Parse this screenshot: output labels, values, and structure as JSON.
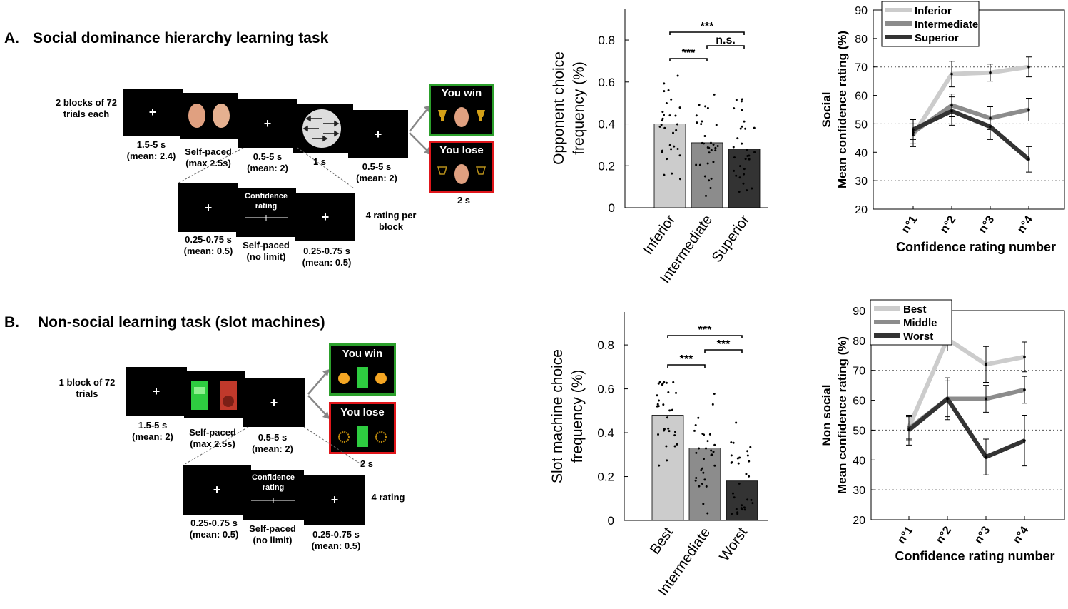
{
  "panelA": {
    "letter": "A.",
    "title": "Social dominance hierarchy learning task",
    "blocks_label": [
      "2 blocks of 72",
      "trials each"
    ],
    "screens": [
      {
        "label": [
          "1.5-5 s",
          "(mean: 2.4)"
        ]
      },
      {
        "label": [
          "Self-paced",
          "(max 2.5s)"
        ]
      },
      {
        "label": [
          "0.5-5 s",
          "(mean: 2)"
        ]
      },
      {
        "label": [
          "1 s"
        ]
      },
      {
        "label": [
          "0.5-5 s",
          "(mean: 2)"
        ]
      }
    ],
    "win_text": "You win",
    "lose_text": "You lose",
    "feedback_time": "2 s",
    "rating_screens": [
      {
        "label": [
          "0.25-0.75 s",
          "(mean: 0.5)"
        ]
      },
      {
        "label": [
          "Self-paced",
          "(no limit)"
        ],
        "text": [
          "Confidence",
          "rating"
        ]
      },
      {
        "label": [
          "0.25-0.75 s",
          "(mean: 0.5)"
        ]
      }
    ],
    "rating_note": [
      "4 rating per",
      "block"
    ]
  },
  "panelB": {
    "letter": "B.",
    "title": "Non-social learning task (slot machines)",
    "blocks_label": [
      "1 block of 72",
      "trials"
    ],
    "screens": [
      {
        "label": [
          "1.5-5 s",
          "(mean: 2)"
        ]
      },
      {
        "label": [
          "Self-paced",
          "(max 2.5s)"
        ]
      },
      {
        "label": [
          "0.5-5 s",
          "(mean: 2)"
        ]
      }
    ],
    "win_text": "You win",
    "lose_text": "You lose",
    "feedback_time": "2 s",
    "rating_screens": [
      {
        "label": [
          "0.25-0.75 s",
          "(mean: 0.5)"
        ]
      },
      {
        "label": [
          "Self-paced",
          "(no limit)"
        ],
        "text": [
          "Confidence",
          "rating"
        ]
      },
      {
        "label": [
          "0.25-0.75 s",
          "(mean: 0.5)"
        ]
      }
    ],
    "rating_note": [
      "4 rating"
    ]
  },
  "colors": {
    "light": "#cccccc",
    "mid": "#8c8c8c",
    "dark": "#333333",
    "win": "#2ca02c",
    "lose": "#e0161b"
  },
  "chart_data": [
    {
      "type": "bar",
      "ylabel": [
        "Opponent choice",
        "frequency (%)"
      ],
      "categories": [
        "Inferior",
        "Intermediate",
        "Superior"
      ],
      "values": [
        0.4,
        0.31,
        0.28
      ],
      "ylim": [
        0,
        0.95
      ],
      "yticks": [
        "0",
        "0.2",
        "0.4",
        "0.6",
        "0.8"
      ],
      "yticks_values": [
        0,
        0.2,
        0.4,
        0.6,
        0.8
      ],
      "significance": [
        {
          "pair": [
            0,
            2
          ],
          "text": "***"
        },
        {
          "pair": [
            1,
            2
          ],
          "text": "n.s."
        },
        {
          "pair": [
            0,
            1
          ],
          "text": "***"
        }
      ]
    },
    {
      "type": "line",
      "ylabel": [
        "Social",
        "Mean confidence rating (%)"
      ],
      "xlabel": "Confidence rating number",
      "categories": [
        "n°1",
        "n°2",
        "n°3",
        "n°4"
      ],
      "ylim": [
        20,
        90
      ],
      "yticks": [
        20,
        30,
        40,
        50,
        60,
        70,
        80,
        90
      ],
      "dotted_grid": [
        30,
        50,
        70
      ],
      "legend_position": "top-left",
      "series": [
        {
          "name": "Inferior",
          "values": [
            46,
            67.5,
            68,
            70
          ],
          "errors": [
            4,
            4.5,
            3,
            3.5
          ]
        },
        {
          "name": "Intermediate",
          "values": [
            47,
            56.5,
            52,
            55
          ],
          "errors": [
            4,
            4,
            4,
            4
          ]
        },
        {
          "name": "Superior",
          "values": [
            48,
            54.5,
            49,
            37.5
          ],
          "errors": [
            3.5,
            5,
            4.5,
            4.5
          ]
        }
      ]
    },
    {
      "type": "bar",
      "ylabel": [
        "Slot machine choice",
        "frequency (%)"
      ],
      "categories": [
        "Best",
        "Intermediate",
        "Worst"
      ],
      "values": [
        0.48,
        0.33,
        0.18
      ],
      "ylim": [
        0,
        0.95
      ],
      "yticks": [
        "0",
        "0.2",
        "0.4",
        "0.6",
        "0.8"
      ],
      "yticks_values": [
        0,
        0.2,
        0.4,
        0.6,
        0.8
      ],
      "significance": [
        {
          "pair": [
            0,
            2
          ],
          "text": "***"
        },
        {
          "pair": [
            1,
            2
          ],
          "text": "***"
        },
        {
          "pair": [
            0,
            1
          ],
          "text": "***"
        }
      ]
    },
    {
      "type": "line",
      "ylabel": [
        "Non social",
        "Mean confidence rating (%)"
      ],
      "xlabel": "Confidence rating number",
      "categories": [
        "n°1",
        "n°2",
        "n°3",
        "n°4"
      ],
      "ylim": [
        20,
        90
      ],
      "yticks": [
        20,
        30,
        40,
        50,
        60,
        70,
        80,
        90
      ],
      "dotted_grid": [
        30,
        50,
        70
      ],
      "legend_position": "top-left",
      "series": [
        {
          "name": "Best",
          "values": [
            51,
            80.5,
            72,
            74.5
          ],
          "errors": [
            4,
            4,
            6,
            5
          ]
        },
        {
          "name": "Middle",
          "values": [
            50.5,
            60.5,
            60.5,
            63.5
          ],
          "errors": [
            4,
            6,
            4.5,
            4.5
          ]
        },
        {
          "name": "Worst",
          "values": [
            50,
            60.5,
            41,
            46.5
          ],
          "errors": [
            5,
            7,
            6,
            8.5
          ]
        }
      ]
    }
  ]
}
